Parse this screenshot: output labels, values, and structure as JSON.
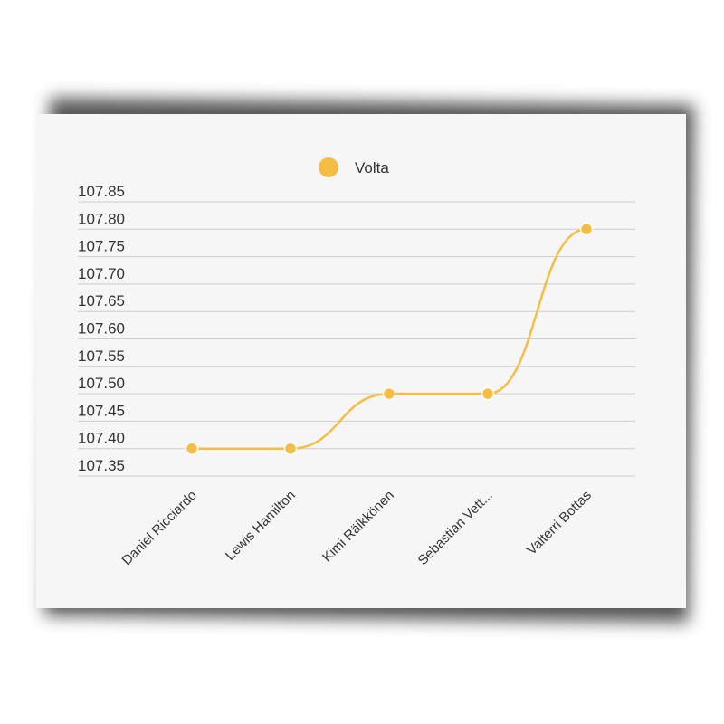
{
  "chart_data": {
    "type": "line",
    "categories": [
      "Daniel Ricciardo",
      "Lewis Hamilton",
      "Kimi Räikkönen",
      "Sebastian Vett...",
      "Valterri Bottas"
    ],
    "series": [
      {
        "name": "Volta",
        "values": [
          107.4,
          107.4,
          107.5,
          107.5,
          107.8
        ]
      }
    ],
    "yticks": [
      "107.35",
      "107.40",
      "107.45",
      "107.50",
      "107.55",
      "107.60",
      "107.65",
      "107.70",
      "107.75",
      "107.80",
      "107.85"
    ],
    "ylim": [
      107.35,
      107.85
    ],
    "grid": true,
    "legend": "top-center",
    "colors": {
      "series": "#f5bd43",
      "grid": "#cccccc"
    }
  }
}
